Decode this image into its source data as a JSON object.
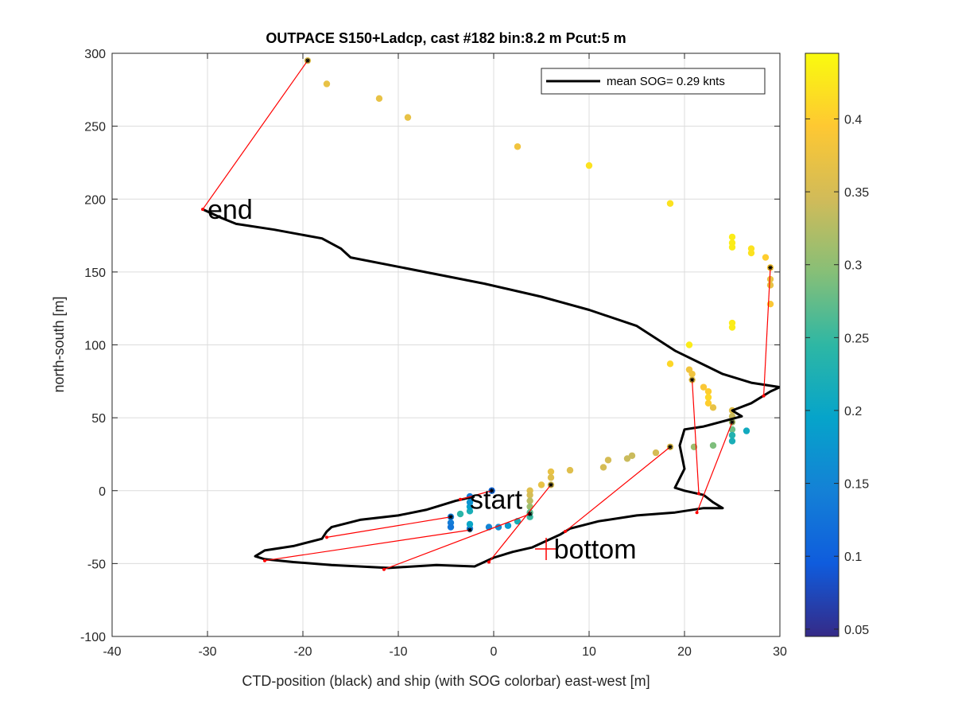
{
  "chart_data": {
    "type": "scatter",
    "title": "OUTPACE S150+Ladcp, cast #182 bin:8.2 m  Pcut:5 m",
    "xlabel": "CTD-position (black) and ship (with SOG colorbar) east-west [m]",
    "ylabel": "north-south [m]",
    "xlim": [
      -40,
      30
    ],
    "ylim": [
      -100,
      300
    ],
    "xticks": [
      -40,
      -30,
      -20,
      -10,
      0,
      10,
      20,
      30
    ],
    "yticks": [
      -100,
      -50,
      0,
      50,
      100,
      150,
      200,
      250,
      300
    ],
    "xtick_labels": [
      "-40",
      "-30",
      "-20",
      "-10",
      "0",
      "10",
      "20",
      "30"
    ],
    "ytick_labels": [
      "-100",
      "-50",
      "0",
      "50",
      "100",
      "150",
      "200",
      "250",
      "300"
    ],
    "grid": true,
    "legend": {
      "position": "top-right",
      "label": "mean SOG=  0.29 knts"
    },
    "colorbar": {
      "range": [
        0.045,
        0.445
      ],
      "ticks": [
        0.05,
        0.1,
        0.15,
        0.2,
        0.25,
        0.3,
        0.35,
        0.4
      ],
      "tick_labels": [
        "0.05",
        "0.1",
        "0.15",
        "0.2",
        "0.25",
        "0.3",
        "0.35",
        "0.4"
      ],
      "colors": [
        "#352a87",
        "#0f5cdd",
        "#1481d6",
        "#06a4ca",
        "#2eb7a4",
        "#87bf77",
        "#d1bb59",
        "#fec832",
        "#f9fb0e"
      ]
    },
    "ctd_track": [
      [
        -30.5,
        193
      ],
      [
        -28.5,
        187
      ],
      [
        -27,
        183
      ],
      [
        -23,
        179
      ],
      [
        -18,
        173
      ],
      [
        -16,
        166
      ],
      [
        -15,
        160
      ],
      [
        -8,
        151
      ],
      [
        -1,
        142
      ],
      [
        5,
        133
      ],
      [
        10,
        124
      ],
      [
        15,
        113
      ],
      [
        19,
        96
      ],
      [
        24,
        80
      ],
      [
        27,
        74
      ],
      [
        30,
        71
      ],
      [
        29,
        68
      ],
      [
        27,
        60
      ],
      [
        25,
        55
      ],
      [
        26,
        51
      ],
      [
        22,
        44
      ],
      [
        20,
        42
      ],
      [
        19.5,
        31
      ],
      [
        20,
        15
      ],
      [
        19,
        2
      ],
      [
        20,
        0
      ],
      [
        22,
        -3
      ],
      [
        23,
        -8
      ],
      [
        24,
        -12
      ],
      [
        22,
        -12
      ],
      [
        19,
        -15
      ],
      [
        15,
        -17
      ],
      [
        11,
        -21
      ],
      [
        8,
        -26
      ],
      [
        7,
        -30
      ],
      [
        6,
        -33
      ],
      [
        5,
        -36
      ],
      [
        4,
        -39
      ],
      [
        2,
        -42
      ],
      [
        0,
        -46
      ],
      [
        -1,
        -49
      ],
      [
        -2,
        -52
      ],
      [
        -6,
        -51
      ],
      [
        -11,
        -53
      ],
      [
        -17,
        -51
      ],
      [
        -21,
        -49
      ],
      [
        -24,
        -47
      ],
      [
        -25,
        -45
      ],
      [
        -24,
        -41
      ],
      [
        -21,
        -38
      ],
      [
        -18,
        -33
      ],
      [
        -17.5,
        -28
      ],
      [
        -17,
        -25
      ],
      [
        -14,
        -20
      ],
      [
        -10,
        -17
      ],
      [
        -7,
        -13
      ],
      [
        -4,
        -7
      ],
      [
        -2,
        -4
      ]
    ],
    "ship_track": [
      {
        "x": -19.5,
        "y": 295,
        "sog": 0.36
      },
      {
        "x": -17.5,
        "y": 279,
        "sog": 0.37
      },
      {
        "x": -12,
        "y": 269,
        "sog": 0.37
      },
      {
        "x": -9,
        "y": 256,
        "sog": 0.37
      },
      {
        "x": 2.5,
        "y": 236,
        "sog": 0.38
      },
      {
        "x": 10,
        "y": 223,
        "sog": 0.42
      },
      {
        "x": 18.5,
        "y": 197,
        "sog": 0.42
      },
      {
        "x": 25,
        "y": 174,
        "sog": 0.43
      },
      {
        "x": 25,
        "y": 170,
        "sog": 0.43
      },
      {
        "x": 25,
        "y": 167,
        "sog": 0.43
      },
      {
        "x": 27,
        "y": 166,
        "sog": 0.42
      },
      {
        "x": 27,
        "y": 163,
        "sog": 0.42
      },
      {
        "x": 28.5,
        "y": 160,
        "sog": 0.4
      },
      {
        "x": 29,
        "y": 153,
        "sog": 0.39
      },
      {
        "x": 29,
        "y": 145,
        "sog": 0.37
      },
      {
        "x": 29,
        "y": 141,
        "sog": 0.37
      },
      {
        "x": 29,
        "y": 128,
        "sog": 0.39
      },
      {
        "x": 25,
        "y": 115,
        "sog": 0.43
      },
      {
        "x": 25,
        "y": 112,
        "sog": 0.43
      },
      {
        "x": 20.5,
        "y": 100,
        "sog": 0.43
      },
      {
        "x": 18.5,
        "y": 87,
        "sog": 0.41
      },
      {
        "x": 20.5,
        "y": 83,
        "sog": 0.38
      },
      {
        "x": 20.8,
        "y": 80,
        "sog": 0.38
      },
      {
        "x": 20.8,
        "y": 76,
        "sog": 0.37
      },
      {
        "x": 22,
        "y": 71,
        "sog": 0.39
      },
      {
        "x": 22.5,
        "y": 68,
        "sog": 0.4
      },
      {
        "x": 22.5,
        "y": 64,
        "sog": 0.41
      },
      {
        "x": 22.5,
        "y": 60,
        "sog": 0.4
      },
      {
        "x": 23,
        "y": 57,
        "sog": 0.37
      },
      {
        "x": 25,
        "y": 55,
        "sog": 0.36
      },
      {
        "x": 25,
        "y": 51,
        "sog": 0.34
      },
      {
        "x": 25,
        "y": 47,
        "sog": 0.32
      },
      {
        "x": 25,
        "y": 42,
        "sog": 0.28
      },
      {
        "x": 25,
        "y": 38,
        "sog": 0.23
      },
      {
        "x": 25,
        "y": 34,
        "sog": 0.22
      },
      {
        "x": 26.5,
        "y": 41,
        "sog": 0.21
      },
      {
        "x": 23,
        "y": 31,
        "sog": 0.29
      },
      {
        "x": 21,
        "y": 30,
        "sog": 0.31
      },
      {
        "x": 18.5,
        "y": 30,
        "sog": 0.36
      },
      {
        "x": 17,
        "y": 26,
        "sog": 0.35
      },
      {
        "x": 14.5,
        "y": 24,
        "sog": 0.34
      },
      {
        "x": 14,
        "y": 22,
        "sog": 0.34
      },
      {
        "x": 12,
        "y": 21,
        "sog": 0.35
      },
      {
        "x": 11.5,
        "y": 16,
        "sog": 0.35
      },
      {
        "x": 8,
        "y": 14,
        "sog": 0.36
      },
      {
        "x": 6,
        "y": 13,
        "sog": 0.37
      },
      {
        "x": 6,
        "y": 9,
        "sog": 0.36
      },
      {
        "x": 6,
        "y": 4,
        "sog": 0.35
      },
      {
        "x": 5,
        "y": 4,
        "sog": 0.37
      },
      {
        "x": 3.8,
        "y": 0,
        "sog": 0.36
      },
      {
        "x": 3.8,
        "y": -3,
        "sog": 0.35
      },
      {
        "x": 3.8,
        "y": -7,
        "sog": 0.33
      },
      {
        "x": 3.8,
        "y": -11,
        "sog": 0.31
      },
      {
        "x": 3.8,
        "y": -15,
        "sog": 0.27
      },
      {
        "x": 3.8,
        "y": -18,
        "sog": 0.25
      },
      {
        "x": 2.5,
        "y": -21,
        "sog": 0.22
      },
      {
        "x": 1.5,
        "y": -24,
        "sog": 0.18
      },
      {
        "x": 0.5,
        "y": -25,
        "sog": 0.16
      },
      {
        "x": -0.5,
        "y": -25,
        "sog": 0.15
      },
      {
        "x": -2.5,
        "y": -26,
        "sog": 0.14
      },
      {
        "x": -2.5,
        "y": -23,
        "sog": 0.2
      },
      {
        "x": -3.5,
        "y": -16,
        "sog": 0.24
      },
      {
        "x": -2.5,
        "y": -14,
        "sog": 0.22
      },
      {
        "x": -2.5,
        "y": -11,
        "sog": 0.19
      },
      {
        "x": -2.5,
        "y": -8,
        "sog": 0.17
      },
      {
        "x": -2.5,
        "y": -4,
        "sog": 0.14
      },
      {
        "x": -0.2,
        "y": 0,
        "sog": 0.11
      },
      {
        "x": -4.5,
        "y": -18,
        "sog": 0.14
      },
      {
        "x": -4.5,
        "y": -22,
        "sog": 0.14
      },
      {
        "x": -4.5,
        "y": -25,
        "sog": 0.13
      }
    ],
    "red_connectors": [
      [
        [
          -30.5,
          193
        ],
        [
          -19.5,
          295
        ]
      ],
      [
        [
          28.3,
          65
        ],
        [
          29,
          153
        ]
      ],
      [
        [
          21.5,
          -2
        ],
        [
          20.8,
          76
        ]
      ],
      [
        [
          21.3,
          -15
        ],
        [
          25,
          47
        ]
      ],
      [
        [
          7.5,
          -28
        ],
        [
          18.5,
          30
        ]
      ],
      [
        [
          -0.5,
          -49
        ],
        [
          6,
          4
        ]
      ],
      [
        [
          -11.5,
          -54
        ],
        [
          3.8,
          -16
        ]
      ],
      [
        [
          -24,
          -48
        ],
        [
          -2.5,
          -27
        ]
      ],
      [
        [
          -17.5,
          -32
        ],
        [
          -4.5,
          -18
        ]
      ],
      [
        [
          -3.5,
          -6
        ],
        [
          -0.2,
          0
        ]
      ]
    ],
    "annotations": [
      {
        "text": "end",
        "x": -30,
        "y": 193
      },
      {
        "text": "start",
        "x": -2.5,
        "y": -6
      },
      {
        "text": "bottom",
        "x": 6.3,
        "y": -40
      }
    ],
    "bottom_marker": {
      "x": 5.5,
      "y": -40
    }
  }
}
